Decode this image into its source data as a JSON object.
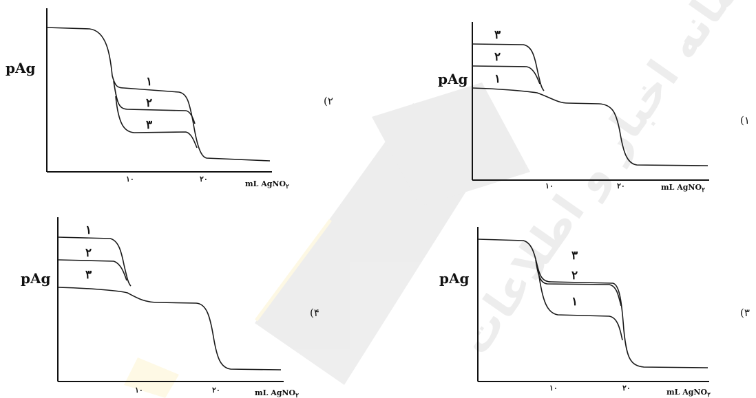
{
  "panels": [
    {
      "option": "(۲",
      "y_label": "pAg",
      "x_ticks": [
        "۱۰",
        "۲۰"
      ],
      "x_unit": "mL AgNO",
      "x_unit_sub": "۲",
      "curve_labels": [
        "۱",
        "۲",
        "۳"
      ]
    },
    {
      "option": "(۱",
      "y_label": "pAg",
      "x_ticks": [
        "۱۰",
        "۲۰"
      ],
      "x_unit": "mL AgNO",
      "x_unit_sub": "۲",
      "curve_labels": [
        "۳",
        "۲",
        "۱"
      ]
    },
    {
      "option": "(۴",
      "y_label": "pAg",
      "x_ticks": [
        "۱۰",
        "۲۰"
      ],
      "x_unit": "mL AgNO",
      "x_unit_sub": "۲",
      "curve_labels": [
        "۱",
        "۲",
        "۳"
      ]
    },
    {
      "option": "(۳",
      "y_label": "pAg",
      "x_ticks": [
        "۱۰",
        "۲۰"
      ],
      "x_unit": "mL AgNO",
      "x_unit_sub": "۲",
      "curve_labels": [
        "۳",
        "۲",
        "۱"
      ]
    }
  ],
  "colors": {
    "ink": "#111111",
    "watermark": "#555555",
    "watermark_accent": "#f2c200"
  },
  "watermark_text": "سامانه اخبار و اطلاعات"
}
